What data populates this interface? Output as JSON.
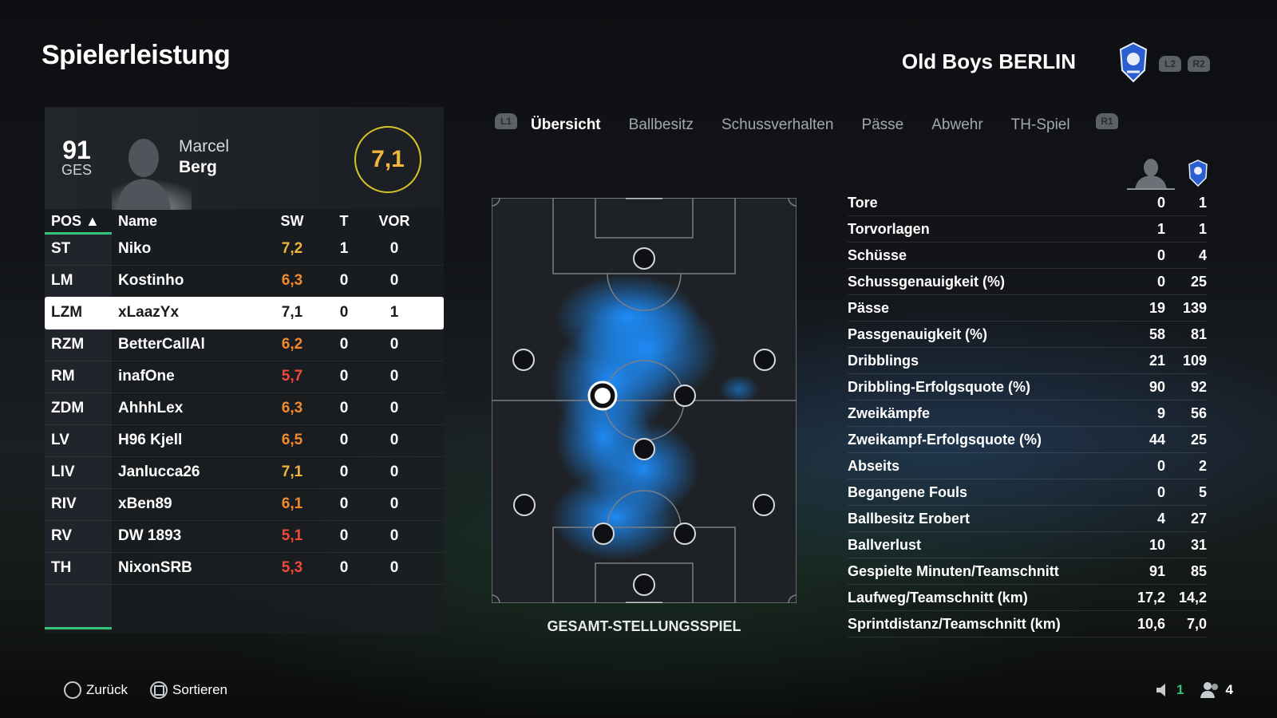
{
  "header": {
    "title": "Spielerleistung",
    "club_name": "Old Boys BERLIN",
    "l2": "L2",
    "r2": "R2"
  },
  "player": {
    "overall": "91",
    "overall_label": "GES",
    "first_name": "Marcel",
    "last_name": "Berg",
    "rating": "7,1"
  },
  "table": {
    "headers": {
      "pos": "POS ▲",
      "name": "Name",
      "sw": "SW",
      "t": "T",
      "vor": "VOR"
    },
    "rows": [
      {
        "pos": "ST",
        "name": "Niko",
        "sw": "7,2",
        "t": "1",
        "vor": "0",
        "sw_color": "#f0b53c"
      },
      {
        "pos": "LM",
        "name": "Kostinho",
        "sw": "6,3",
        "t": "0",
        "vor": "0",
        "sw_color": "#f08a2c"
      },
      {
        "pos": "LZM",
        "name": "xLaazYx",
        "sw": "7,1",
        "t": "0",
        "vor": "1",
        "sw_color": "#1a1a1a"
      },
      {
        "pos": "RZM",
        "name": "BetterCallAl",
        "sw": "6,2",
        "t": "0",
        "vor": "0",
        "sw_color": "#f08a2c"
      },
      {
        "pos": "RM",
        "name": "inafOne",
        "sw": "5,7",
        "t": "0",
        "vor": "0",
        "sw_color": "#ef4b3a"
      },
      {
        "pos": "ZDM",
        "name": "AhhhLex",
        "sw": "6,3",
        "t": "0",
        "vor": "0",
        "sw_color": "#f08a2c"
      },
      {
        "pos": "LV",
        "name": "H96 Kjell",
        "sw": "6,5",
        "t": "0",
        "vor": "0",
        "sw_color": "#f08a2c"
      },
      {
        "pos": "LIV",
        "name": "Janlucca26",
        "sw": "7,1",
        "t": "0",
        "vor": "0",
        "sw_color": "#f0b53c"
      },
      {
        "pos": "RIV",
        "name": "xBen89",
        "sw": "6,1",
        "t": "0",
        "vor": "0",
        "sw_color": "#f08a2c"
      },
      {
        "pos": "RV",
        "name": "DW 1893",
        "sw": "5,1",
        "t": "0",
        "vor": "0",
        "sw_color": "#ef4b3a"
      },
      {
        "pos": "TH",
        "name": "NixonSRB",
        "sw": "5,3",
        "t": "0",
        "vor": "0",
        "sw_color": "#ef4b3a"
      }
    ]
  },
  "tabs": {
    "l1": "L1",
    "r1": "R1",
    "items": [
      "Übersicht",
      "Ballbesitz",
      "Schussverhalten",
      "Pässe",
      "Abwehr",
      "TH-Spiel"
    ]
  },
  "pitch": {
    "label": "GESAMT-STELLUNGSSPIEL"
  },
  "stats": [
    {
      "label": "Tore",
      "player": "0",
      "team": "1"
    },
    {
      "label": "Torvorlagen",
      "player": "1",
      "team": "1"
    },
    {
      "label": "Schüsse",
      "player": "0",
      "team": "4"
    },
    {
      "label": "Schussgenauigkeit (%)",
      "player": "0",
      "team": "25"
    },
    {
      "label": "Pässe",
      "player": "19",
      "team": "139"
    },
    {
      "label": "Passgenauigkeit (%)",
      "player": "58",
      "team": "81"
    },
    {
      "label": "Dribblings",
      "player": "21",
      "team": "109"
    },
    {
      "label": "Dribbling-Erfolgsquote (%)",
      "player": "90",
      "team": "92"
    },
    {
      "label": "Zweikämpfe",
      "player": "9",
      "team": "56"
    },
    {
      "label": "Zweikampf-Erfolgsquote (%)",
      "player": "44",
      "team": "25"
    },
    {
      "label": "Abseits",
      "player": "0",
      "team": "2"
    },
    {
      "label": "Begangene Fouls",
      "player": "0",
      "team": "5"
    },
    {
      "label": "Ballbesitz Erobert",
      "player": "4",
      "team": "27"
    },
    {
      "label": "Ballverlust",
      "player": "10",
      "team": "31"
    },
    {
      "label": "Gespielte Minuten/Teamschnitt",
      "player": "91",
      "team": "85"
    },
    {
      "label": "Laufweg/Teamschnitt (km)",
      "player": "17,2",
      "team": "14,2"
    },
    {
      "label": "Sprintdistanz/Teamschnitt (km)",
      "player": "10,6",
      "team": "7,0"
    }
  ],
  "footer": {
    "back": "Zurück",
    "sort": "Sortieren",
    "count_a": "1",
    "count_b": "4"
  },
  "colors": {
    "accent_green": "#33c27a",
    "rating_ring": "#d6c32a",
    "heat": "#1e8fff"
  }
}
